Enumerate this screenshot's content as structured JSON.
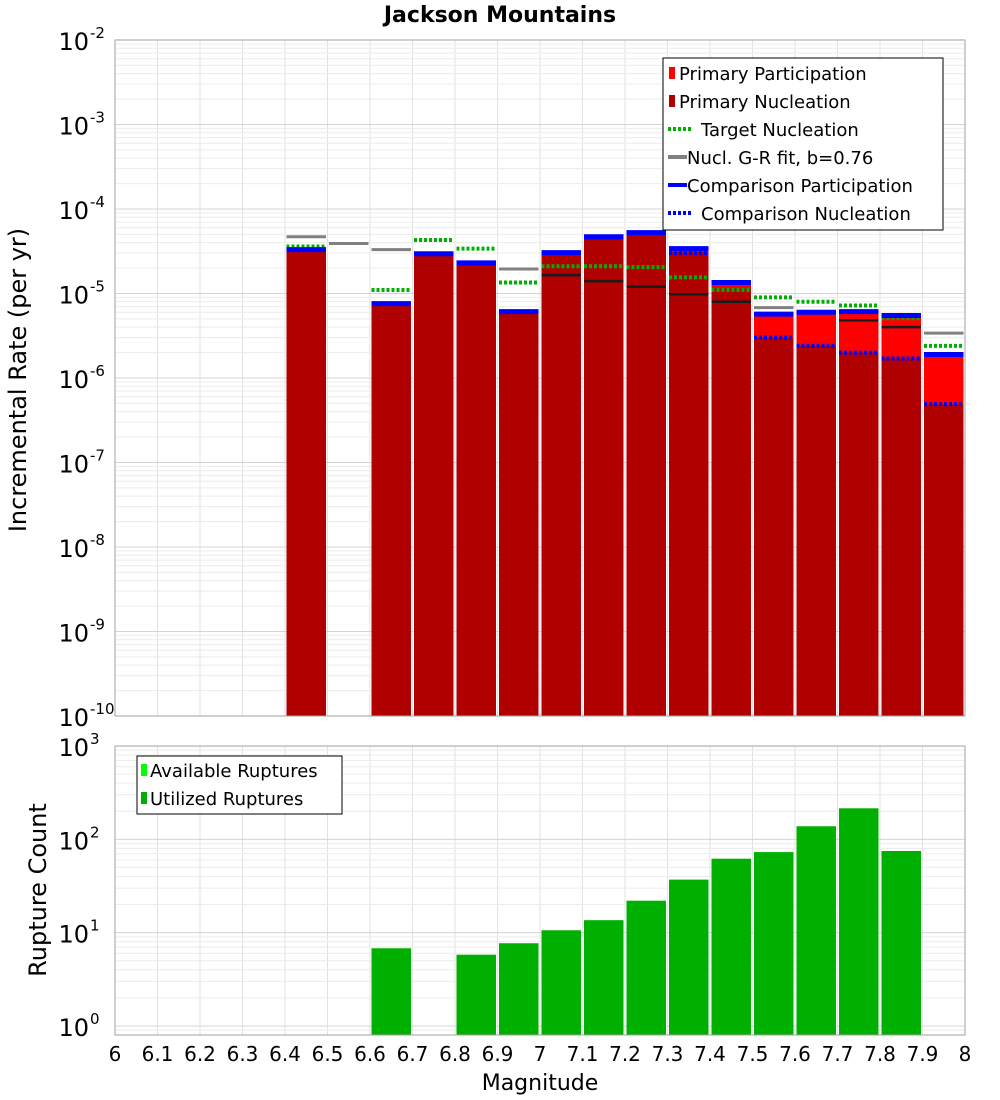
{
  "chart_data": [
    {
      "type": "bar",
      "title": "Jackson Mountains",
      "xlabel": "",
      "ylabel": "Incremental Rate (per yr)",
      "yscale": "log",
      "xlim": [
        6.0,
        8.0
      ],
      "ylim": [
        1e-10,
        0.01
      ],
      "grid": true,
      "legend_position": "top-right",
      "y_tick_labels": [
        {
          "base": "10",
          "exp": "-10"
        },
        {
          "base": "10",
          "exp": "-9"
        },
        {
          "base": "10",
          "exp": "-8"
        },
        {
          "base": "10",
          "exp": "-7"
        },
        {
          "base": "10",
          "exp": "-6"
        },
        {
          "base": "10",
          "exp": "-5"
        },
        {
          "base": "10",
          "exp": "-4"
        },
        {
          "base": "10",
          "exp": "-3"
        },
        {
          "base": "10",
          "exp": "-2"
        }
      ],
      "legend": [
        {
          "label": "Primary Participation",
          "style": "bar",
          "color": "#ff0000"
        },
        {
          "label": "Primary Nucleation",
          "style": "bar",
          "color": "#b00000"
        },
        {
          "label": "Target Nucleation",
          "style": "dotted",
          "color": "#00b000"
        },
        {
          "label": "Nucl. G-R fit, b=0.76",
          "style": "line",
          "color": "#808080"
        },
        {
          "label": "Comparison Participation",
          "style": "line",
          "color": "#0000ff"
        },
        {
          "label": "Comparison Nucleation",
          "style": "dotted",
          "color": "#0000ff"
        }
      ],
      "bin_width": 0.1,
      "bin_centers": [
        6.45,
        6.55,
        6.65,
        6.75,
        6.85,
        6.95,
        7.05,
        7.15,
        7.25,
        7.35,
        7.45,
        7.55,
        7.65,
        7.75,
        7.85,
        7.95
      ],
      "series": [
        {
          "name": "Primary Participation",
          "color": "#ff0000",
          "values": [
            3.2e-05,
            null,
            7.4e-06,
            2.85e-05,
            2.2e-05,
            5.9e-06,
            2.9e-05,
            4.6e-05,
            5.1e-05,
            3.3e-05,
            1.3e-05,
            5.5e-06,
            5.8e-06,
            5.9e-06,
            5.3e-06,
            1.85e-06
          ]
        },
        {
          "name": "Primary Nucleation",
          "color": "#b00000",
          "values": [
            3.2e-05,
            null,
            7.4e-06,
            2.85e-05,
            2.2e-05,
            5.9e-06,
            2.9e-05,
            4.6e-05,
            5.1e-05,
            3.1e-05,
            1.15e-05,
            3e-06,
            2.4e-06,
            2e-06,
            1.7e-06,
            4.9e-07
          ]
        },
        {
          "name": "Target Nucleation",
          "color": "#00b000",
          "values": [
            3.6e-05,
            null,
            1.1e-05,
            4.3e-05,
            3.4e-05,
            1.35e-05,
            2.1e-05,
            2.1e-05,
            2.05e-05,
            1.55e-05,
            1.1e-05,
            9e-06,
            8e-06,
            7.2e-06,
            5.1e-06,
            2.4e-06
          ]
        },
        {
          "name": "Nucl. G-R fit, b=0.76",
          "color": "#808080",
          "values": [
            4.7e-05,
            3.9e-05,
            3.3e-05,
            null,
            null,
            1.95e-05,
            null,
            null,
            null,
            null,
            null,
            6.8e-06,
            null,
            null,
            null,
            3.4e-06
          ]
        },
        {
          "name": "Comparison Participation",
          "color": "#0000ff",
          "values": [
            3.3e-05,
            null,
            7.6e-06,
            2.95e-05,
            2.3e-05,
            6.1e-06,
            3.05e-05,
            4.7e-05,
            5.25e-05,
            3.4e-05,
            1.35e-05,
            5.7e-06,
            6e-06,
            6.1e-06,
            5.5e-06,
            1.9e-06
          ]
        },
        {
          "name": "Comparison Nucleation",
          "color": "#0000ff",
          "values": [
            null,
            null,
            null,
            null,
            null,
            null,
            null,
            null,
            null,
            3e-05,
            1.1e-05,
            3e-06,
            2.4e-06,
            2e-06,
            1.7e-06,
            4.9e-07
          ]
        },
        {
          "name": "",
          "color": "#1a1a1a",
          "values": [
            null,
            null,
            null,
            null,
            null,
            null,
            1.65e-05,
            1.4e-05,
            1.2e-05,
            9.8e-06,
            8e-06,
            null,
            null,
            4.8e-06,
            4e-06,
            null
          ]
        }
      ]
    },
    {
      "type": "bar",
      "title": "",
      "xlabel": "Magnitude",
      "ylabel": "Rupture Count",
      "yscale": "log",
      "xlim": [
        6.0,
        8.0
      ],
      "ylim": [
        0.8,
        1000
      ],
      "grid": true,
      "legend_position": "top-left",
      "y_tick_labels": [
        {
          "base": "10",
          "exp": "0",
          "value": 1
        },
        {
          "base": "10",
          "exp": "1",
          "value": 10
        },
        {
          "base": "10",
          "exp": "2",
          "value": 100
        },
        {
          "base": "10",
          "exp": "3",
          "value": 1000
        }
      ],
      "x_tick_labels": [
        "6",
        "6.1",
        "6.2",
        "6.3",
        "6.4",
        "6.5",
        "6.6",
        "6.7",
        "6.8",
        "6.9",
        "7",
        "7.1",
        "7.2",
        "7.3",
        "7.4",
        "7.5",
        "7.6",
        "7.7",
        "7.8",
        "7.9",
        "8"
      ],
      "legend": [
        {
          "label": "Available Ruptures",
          "color": "#00ff00"
        },
        {
          "label": "Utilized Ruptures",
          "color": "#00b000"
        }
      ],
      "bin_width": 0.1,
      "bin_centers": [
        6.65,
        6.85,
        6.95,
        7.05,
        7.15,
        7.25,
        7.35,
        7.45,
        7.55,
        7.65,
        7.75,
        7.85
      ],
      "series": [
        {
          "name": "Utilized Ruptures",
          "color": "#00b000",
          "values": [
            6.8,
            5.8,
            7.7,
            10.6,
            13.6,
            22,
            37,
            62,
            73,
            138,
            215,
            75
          ]
        }
      ]
    }
  ]
}
